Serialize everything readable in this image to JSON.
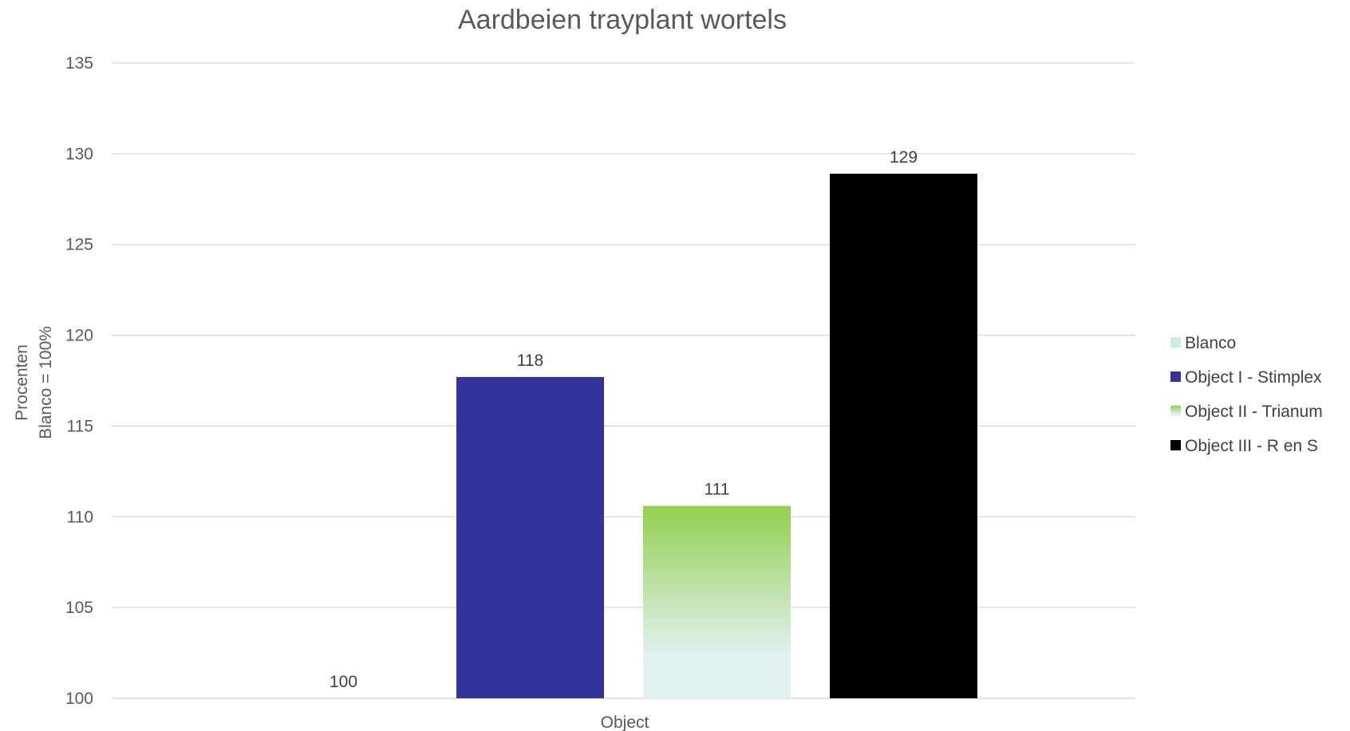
{
  "chart_data": {
    "type": "bar",
    "title": "Aardbeien trayplant wortels",
    "xlabel": "Object",
    "ylabel_lines": [
      "Procenten",
      "Blanco = 100%"
    ],
    "categories": [
      "Object"
    ],
    "ylim": [
      100,
      135
    ],
    "yticks": [
      100,
      105,
      110,
      115,
      120,
      125,
      130,
      135
    ],
    "grid": true,
    "legend_position": "right",
    "series": [
      {
        "name": "Blanco",
        "values": [
          100
        ],
        "label": "100",
        "color": "#cfe8ea",
        "fill": "solid"
      },
      {
        "name": "Object I - Stimplex",
        "values": [
          117.7
        ],
        "label": "118",
        "color": "#333399",
        "fill": "solid"
      },
      {
        "name": "Object II - Trianum",
        "values": [
          110.6
        ],
        "label": "111",
        "color": "#92d050",
        "color_end": "#e2f1f2",
        "fill": "gradient"
      },
      {
        "name": "Object III - R en S",
        "values": [
          128.9
        ],
        "label": "129",
        "color": "#000000",
        "fill": "solid"
      }
    ]
  }
}
